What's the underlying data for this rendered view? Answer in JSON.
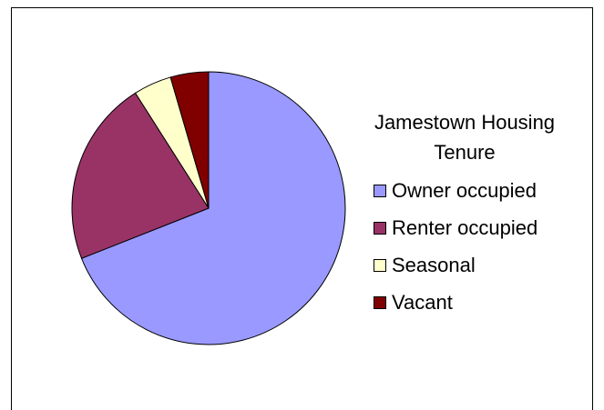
{
  "chart_data": {
    "type": "pie",
    "title": "Jamestown Housing Tenure",
    "categories": [
      "Owner occupied",
      "Renter occupied",
      "Seasonal",
      "Vacant"
    ],
    "values": [
      69,
      22,
      4.5,
      4.5
    ],
    "colors": [
      "#9999ff",
      "#993366",
      "#ffffcc",
      "#800000"
    ],
    "legend": "right"
  }
}
